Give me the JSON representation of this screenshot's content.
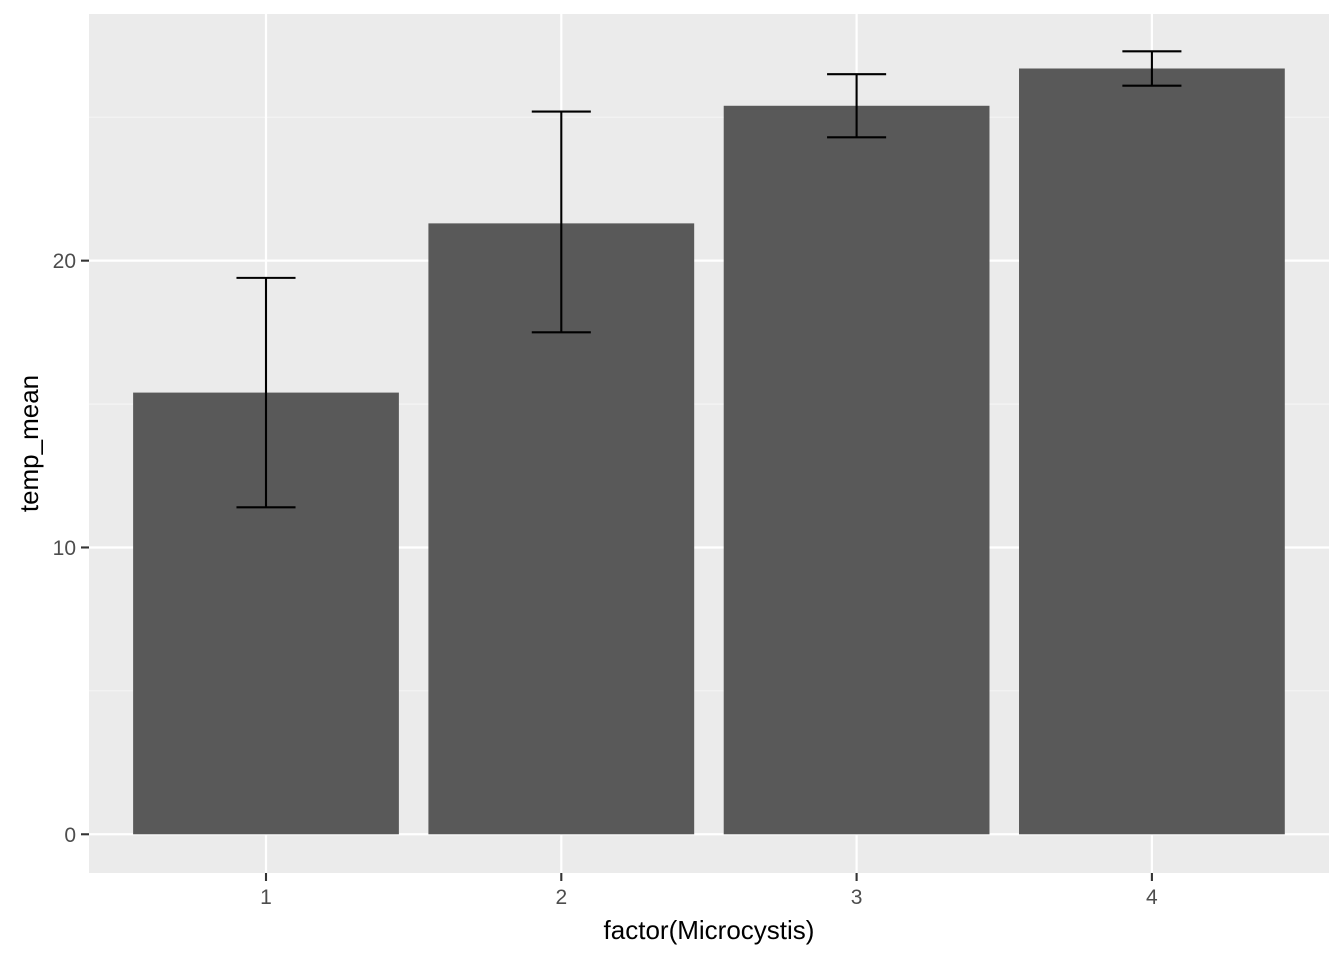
{
  "chart_data": {
    "type": "bar",
    "title": "",
    "xlabel": "factor(Microcystis)",
    "ylabel": "temp_mean",
    "categories": [
      "1",
      "2",
      "3",
      "4"
    ],
    "values": [
      15.4,
      21.3,
      25.4,
      26.7
    ],
    "error_bars": [
      {
        "lower": 11.4,
        "upper": 19.4
      },
      {
        "lower": 17.5,
        "upper": 25.2
      },
      {
        "lower": 24.3,
        "upper": 26.5
      },
      {
        "lower": 26.1,
        "upper": 27.3
      }
    ],
    "y_ticks": [
      0,
      10,
      20
    ],
    "y_tick_labels": [
      "0",
      "10",
      "20"
    ],
    "ylim": [
      -1.35,
      28.6
    ],
    "grid": true,
    "colors": {
      "panel_background": "#ebebeb",
      "grid_major": "#ffffff",
      "grid_minor": "#f5f5f5",
      "bar_fill": "#595959",
      "error_bar": "#000000",
      "tick_mark": "#333333",
      "tick_label": "#4d4d4d",
      "axis_title": "#000000"
    }
  }
}
